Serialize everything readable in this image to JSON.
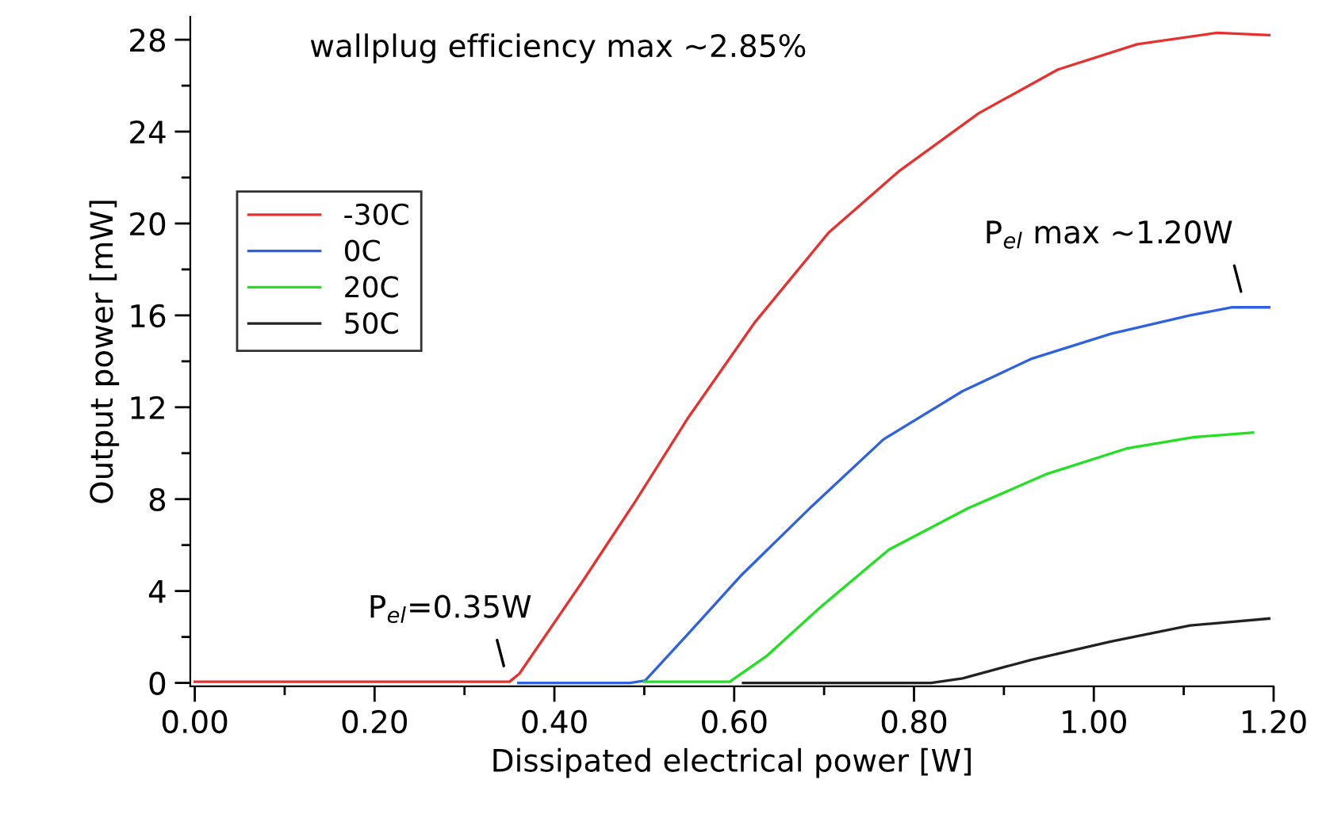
{
  "chart_data": {
    "type": "line",
    "xlabel": "Dissipated electrical power [W]",
    "ylabel": "Output power [mW]",
    "xlim": [
      -0.005,
      1.2
    ],
    "ylim": [
      -0.15,
      29
    ],
    "xticks": [
      {
        "value": 0,
        "label": "0.00"
      },
      {
        "value": 0.1,
        "label": null
      },
      {
        "value": 0.2,
        "label": "0.20"
      },
      {
        "value": 0.3,
        "label": null
      },
      {
        "value": 0.4,
        "label": "0.40"
      },
      {
        "value": 0.5,
        "label": null
      },
      {
        "value": 0.6,
        "label": "0.60"
      },
      {
        "value": 0.7,
        "label": null
      },
      {
        "value": 0.8,
        "label": "0.80"
      },
      {
        "value": 0.9,
        "label": null
      },
      {
        "value": 1.0,
        "label": "1.00"
      },
      {
        "value": 1.1,
        "label": null
      },
      {
        "value": 1.2,
        "label": "1.20"
      }
    ],
    "yticks": [
      0,
      {
        "value": 2,
        "label": null
      },
      4,
      {
        "value": 6,
        "label": null
      },
      8,
      {
        "value": 10,
        "label": null
      },
      12,
      {
        "value": 14,
        "label": null
      },
      16,
      {
        "value": 18,
        "label": null
      },
      20,
      {
        "value": 22,
        "label": null
      },
      24,
      {
        "value": 26,
        "label": null
      },
      28
    ],
    "grid": false,
    "legend": "left",
    "marker": "none",
    "line_style": "solid",
    "series": [
      {
        "name": "-30C",
        "color": "#e8312f",
        "x": [
          0,
          0.1,
          0.2,
          0.3,
          0.35,
          0.361,
          0.431,
          0.49,
          0.548,
          0.623,
          0.705,
          0.784,
          0.872,
          0.96,
          1.048,
          1.137,
          1.195
        ],
        "values": [
          0.05,
          0.05,
          0.05,
          0.05,
          0.05,
          0.4,
          4.4,
          7.9,
          11.5,
          15.7,
          19.6,
          22.3,
          24.8,
          26.7,
          27.8,
          28.3,
          28.2
        ]
      },
      {
        "name": "0C",
        "color": "#2f62e0",
        "x": [
          0.36,
          0.4,
          0.484,
          0.501,
          0.548,
          0.607,
          0.684,
          0.766,
          0.854,
          0.93,
          1.019,
          1.107,
          1.154,
          1.195
        ],
        "values": [
          0,
          0,
          0,
          0.1,
          2.1,
          4.65,
          7.6,
          10.6,
          12.7,
          14.1,
          15.2,
          16.0,
          16.35,
          16.35
        ]
      },
      {
        "name": "20C",
        "color": "#22e022",
        "x": [
          0.5,
          0.595,
          0.637,
          0.696,
          0.772,
          0.86,
          0.948,
          1.036,
          1.112,
          1.177
        ],
        "values": [
          0.05,
          0.05,
          1.2,
          3.3,
          5.8,
          7.6,
          9.1,
          10.2,
          10.7,
          10.9
        ]
      },
      {
        "name": "50C",
        "color": "#222222",
        "x": [
          0.61,
          0.819,
          0.854,
          0.93,
          1.019,
          1.107,
          1.195
        ],
        "values": [
          0,
          0,
          0.2,
          1.0,
          1.8,
          2.5,
          2.8
        ]
      }
    ],
    "annotations": [
      "wallplug efficiency max ~2.85%",
      {
        "text": "P$_{el}$=0.35W",
        "x": 0.35,
        "y": 0.05
      },
      {
        "text": "P$_{el}$ max ~1.20W",
        "x": 1.17,
        "y": 16.35
      }
    ]
  }
}
